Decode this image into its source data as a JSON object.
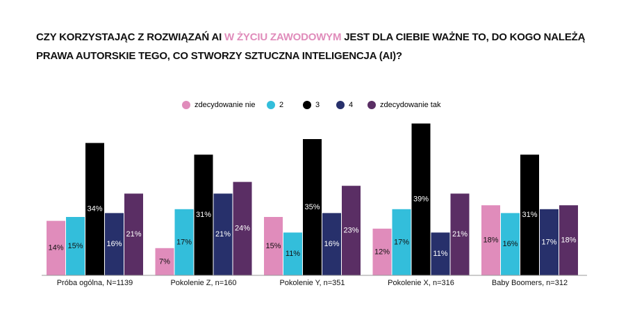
{
  "chart_data": {
    "type": "bar",
    "title": {
      "line1": [
        "CZY KORZYSTAJĄC Z ROZWIĄZAŃ AI",
        "W ŻYCIU ZAWODOWYM",
        "JEST DLA CIEBIE WAŻNE TO, DO KOGO NALEŻĄ"
      ],
      "line2": "PRAWA AUTORSKIE TEGO, CO STWORZY SZTUCZNA INTELIGENCJA (AI)?"
    },
    "categories": [
      "Próba ogólna, N=1139",
      "Pokolenie Z, n=160",
      "Pokolenie Y, n=351",
      "Pokolenie X, n=316",
      "Baby Boomers, n=312"
    ],
    "series": [
      {
        "name": "zdecydowanie nie",
        "color": "#e08cbb",
        "values": [
          14,
          7,
          15,
          12,
          18
        ],
        "value_labels": [
          "14%",
          "7%",
          "15%",
          "12%",
          "18%"
        ]
      },
      {
        "name": "2",
        "color": "#33bedb",
        "values": [
          15,
          17,
          11,
          17,
          16
        ],
        "value_labels": [
          "15%",
          "17%",
          "11%",
          "17%",
          "16%"
        ]
      },
      {
        "name": "3",
        "color": "#000000",
        "values": [
          34,
          31,
          35,
          39,
          31
        ],
        "value_labels": [
          "34%",
          "31%",
          "35%",
          "39%",
          "31%"
        ]
      },
      {
        "name": "4",
        "color": "#27306b",
        "values": [
          16,
          21,
          16,
          11,
          17
        ],
        "value_labels": [
          "16%",
          "21%",
          "16%",
          "11%",
          "17%"
        ]
      },
      {
        "name": "zdecydowanie tak",
        "color": "#5a2e64",
        "values": [
          21,
          24,
          23,
          21,
          18
        ],
        "value_labels": [
          "21%",
          "24%",
          "23%",
          "21%",
          "18%"
        ]
      }
    ]
  }
}
